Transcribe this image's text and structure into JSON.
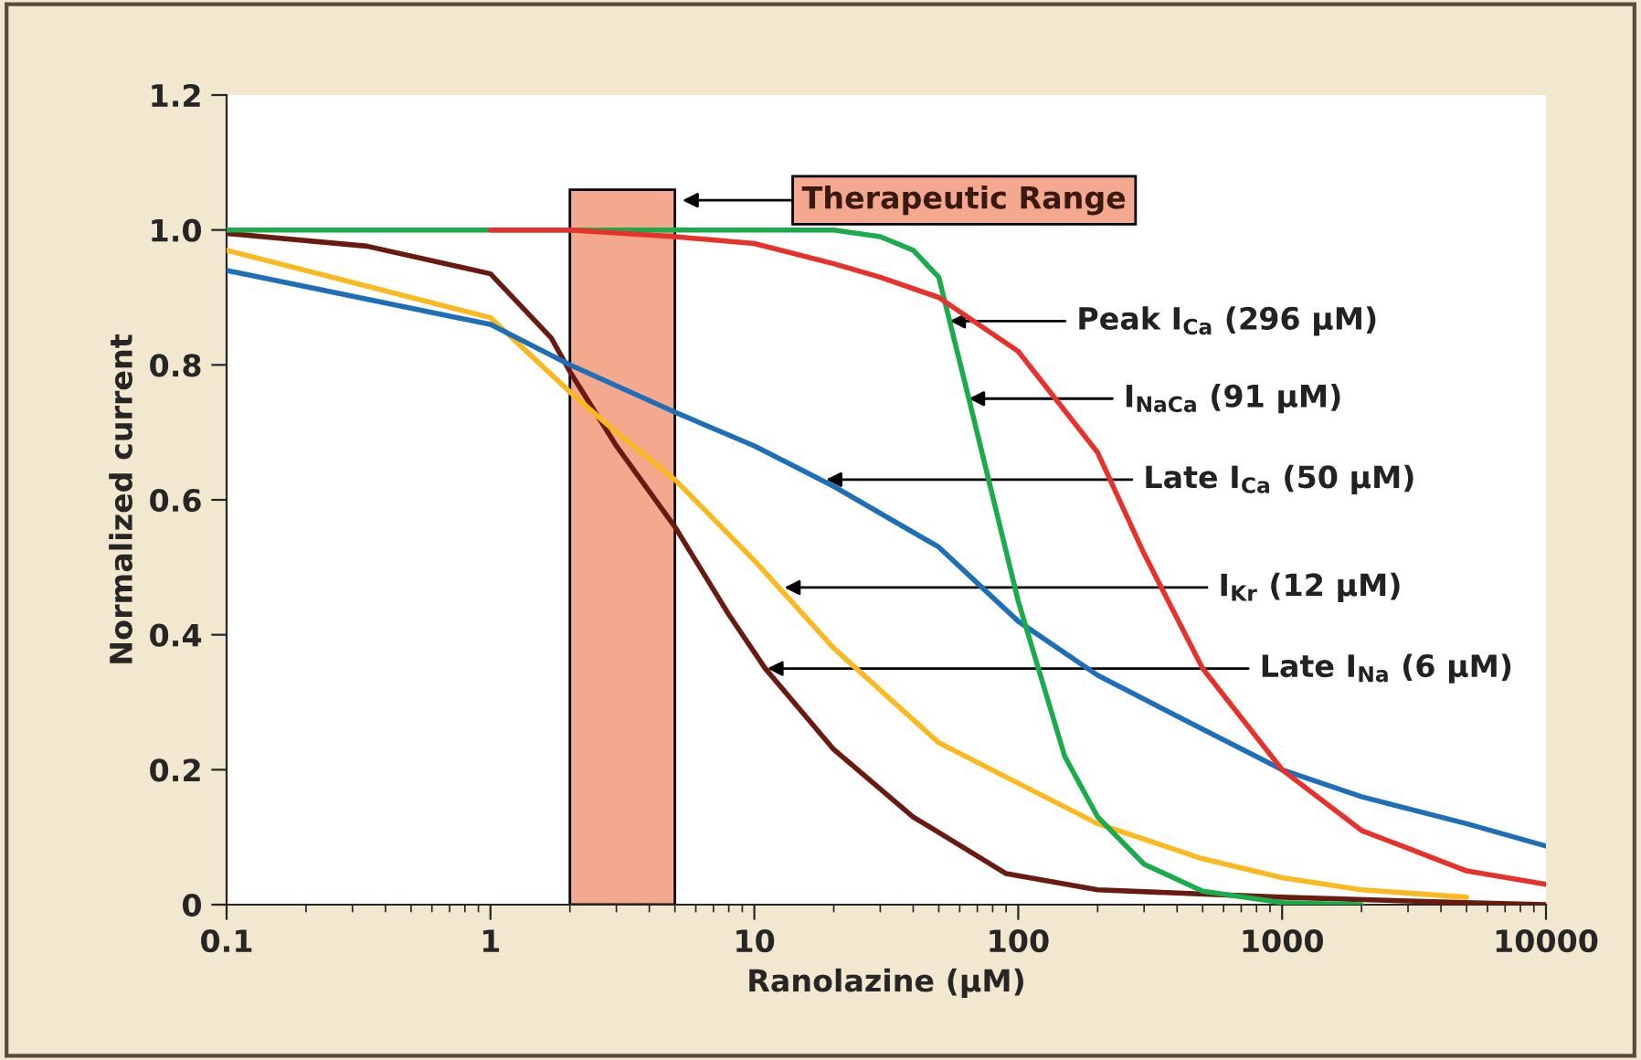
{
  "chart_data": {
    "type": "line",
    "xlabel": "Ranolazine (μM)",
    "ylabel": "Normalized current",
    "log": "x",
    "xlim": [
      0.1,
      10000
    ],
    "ylim": [
      0,
      1.2
    ],
    "xticks": [
      0.1,
      1,
      10,
      100,
      1000,
      10000
    ],
    "yticks": [
      0,
      0.2,
      0.4,
      0.6,
      0.8,
      {
        "value": 1,
        "label": "1.0"
      },
      {
        "value": 1.2,
        "label": "1.2"
      }
    ],
    "grid": false,
    "legend": false,
    "marker": "none",
    "line_style": "solid",
    "series": [
      {
        "color": "#e8312b",
        "x": [
          1,
          2,
          5,
          10,
          20,
          30,
          50,
          100,
          200,
          300,
          500,
          1000,
          2000,
          5000,
          10000
        ],
        "values": [
          1.0,
          1.0,
          0.99,
          0.98,
          0.95,
          0.93,
          0.9,
          0.82,
          0.67,
          0.52,
          0.35,
          0.2,
          0.11,
          0.05,
          0.03
        ]
      },
      {
        "color": "#1aab4b",
        "x": [
          0.1,
          1,
          10,
          20,
          30,
          40,
          50,
          65,
          100,
          150,
          200,
          300,
          500,
          1000,
          2000
        ],
        "values": [
          1.0,
          1.0,
          1.0,
          1.0,
          0.99,
          0.97,
          0.93,
          0.75,
          0.45,
          0.22,
          0.13,
          0.06,
          0.02,
          0.003,
          0.0
        ]
      },
      {
        "color": "#1f6fb8",
        "x": [
          0.1,
          1,
          2,
          5,
          10,
          20,
          50,
          100,
          200,
          500,
          1000,
          2000,
          5000,
          10000
        ],
        "values": [
          0.94,
          0.86,
          0.8,
          0.73,
          0.68,
          0.62,
          0.53,
          0.42,
          0.34,
          0.26,
          0.2,
          0.16,
          0.12,
          0.087
        ]
      },
      {
        "color": "#fbb91f",
        "x": [
          0.1,
          1,
          2,
          3,
          5,
          10,
          20,
          50,
          100,
          200,
          500,
          1000,
          2000,
          5000
        ],
        "values": [
          0.97,
          0.87,
          0.76,
          0.7,
          0.63,
          0.51,
          0.38,
          0.24,
          0.18,
          0.12,
          0.068,
          0.04,
          0.022,
          0.011
        ]
      },
      {
        "color": "#6b1a12",
        "x": [
          0.1,
          0.34,
          1,
          1.7,
          2,
          3,
          5,
          8,
          11,
          20,
          40,
          90,
          200,
          1000,
          5000,
          10000
        ],
        "values": [
          0.995,
          0.976,
          0.935,
          0.84,
          0.79,
          0.68,
          0.56,
          0.43,
          0.35,
          0.23,
          0.13,
          0.046,
          0.022,
          0.011,
          0.003,
          0.0
        ]
      }
    ],
    "bands": [
      {
        "axis": "x",
        "from": 2,
        "to": 5,
        "label": "Therapeutic Range",
        "color": "#f4a98f"
      }
    ],
    "annotations": [
      {
        "text": "Peak I$_{Ca}$ (296 μM)",
        "x": 55,
        "y": 0.865
      },
      {
        "text": "I$_{NaCa}$ (91 μM)",
        "x": 65,
        "y": 0.75
      },
      {
        "text": "Late I$_{Ca}$ (50 μM)",
        "x": 18.7,
        "y": 0.63
      },
      {
        "text": "I$_{Kr}$ (12 μM)",
        "x": 13,
        "y": 0.47
      },
      {
        "text": "Late I$_{Na}$ (6 μM)",
        "x": 11.2,
        "y": 0.35
      }
    ]
  }
}
